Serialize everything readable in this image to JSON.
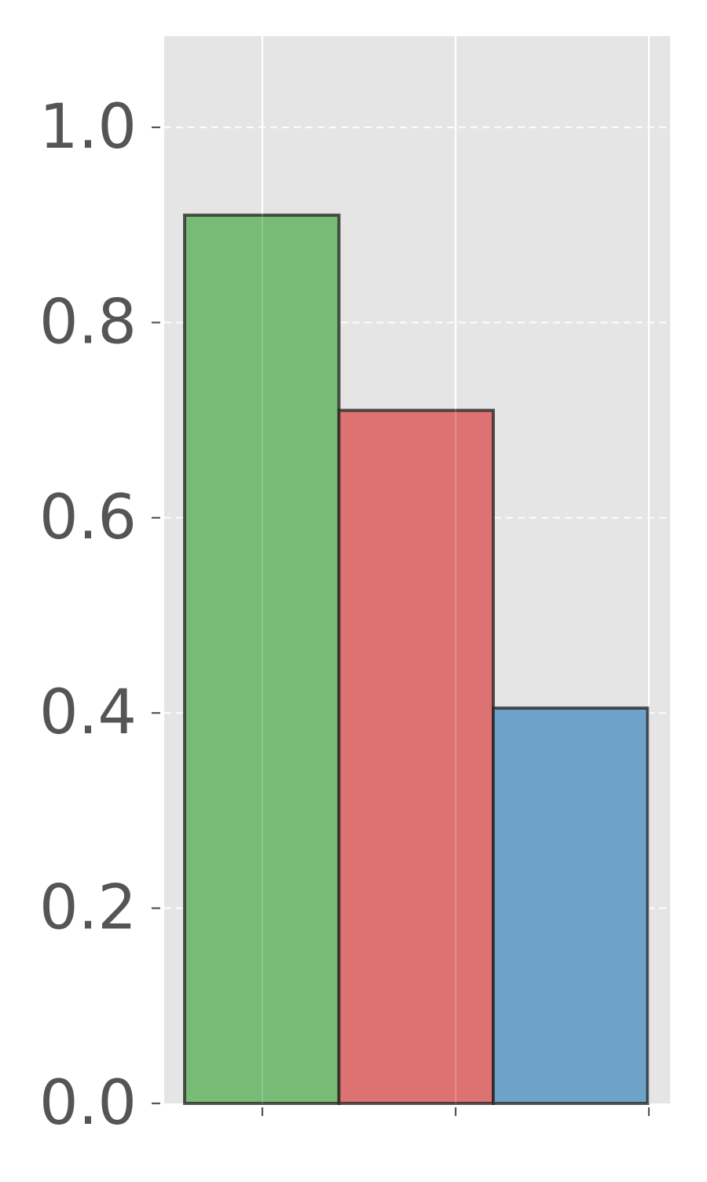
{
  "chart_data": {
    "type": "bar",
    "title": "",
    "xlabel": "",
    "ylabel": "",
    "categories": [
      "",
      "",
      ""
    ],
    "values": [
      0.91,
      0.71,
      0.405
    ],
    "colors": [
      "#77bb77",
      "#dd7272",
      "#6fa2c8"
    ],
    "ylim": [
      0,
      1.09
    ],
    "yticks": [
      0.0,
      0.2,
      0.4,
      0.6,
      0.8,
      1.0
    ],
    "ytick_labels": [
      "0.0",
      "0.2",
      "0.4",
      "0.6",
      "0.8",
      "1.0"
    ],
    "grid": true,
    "background": "#e5e5e5",
    "legend": "none"
  }
}
